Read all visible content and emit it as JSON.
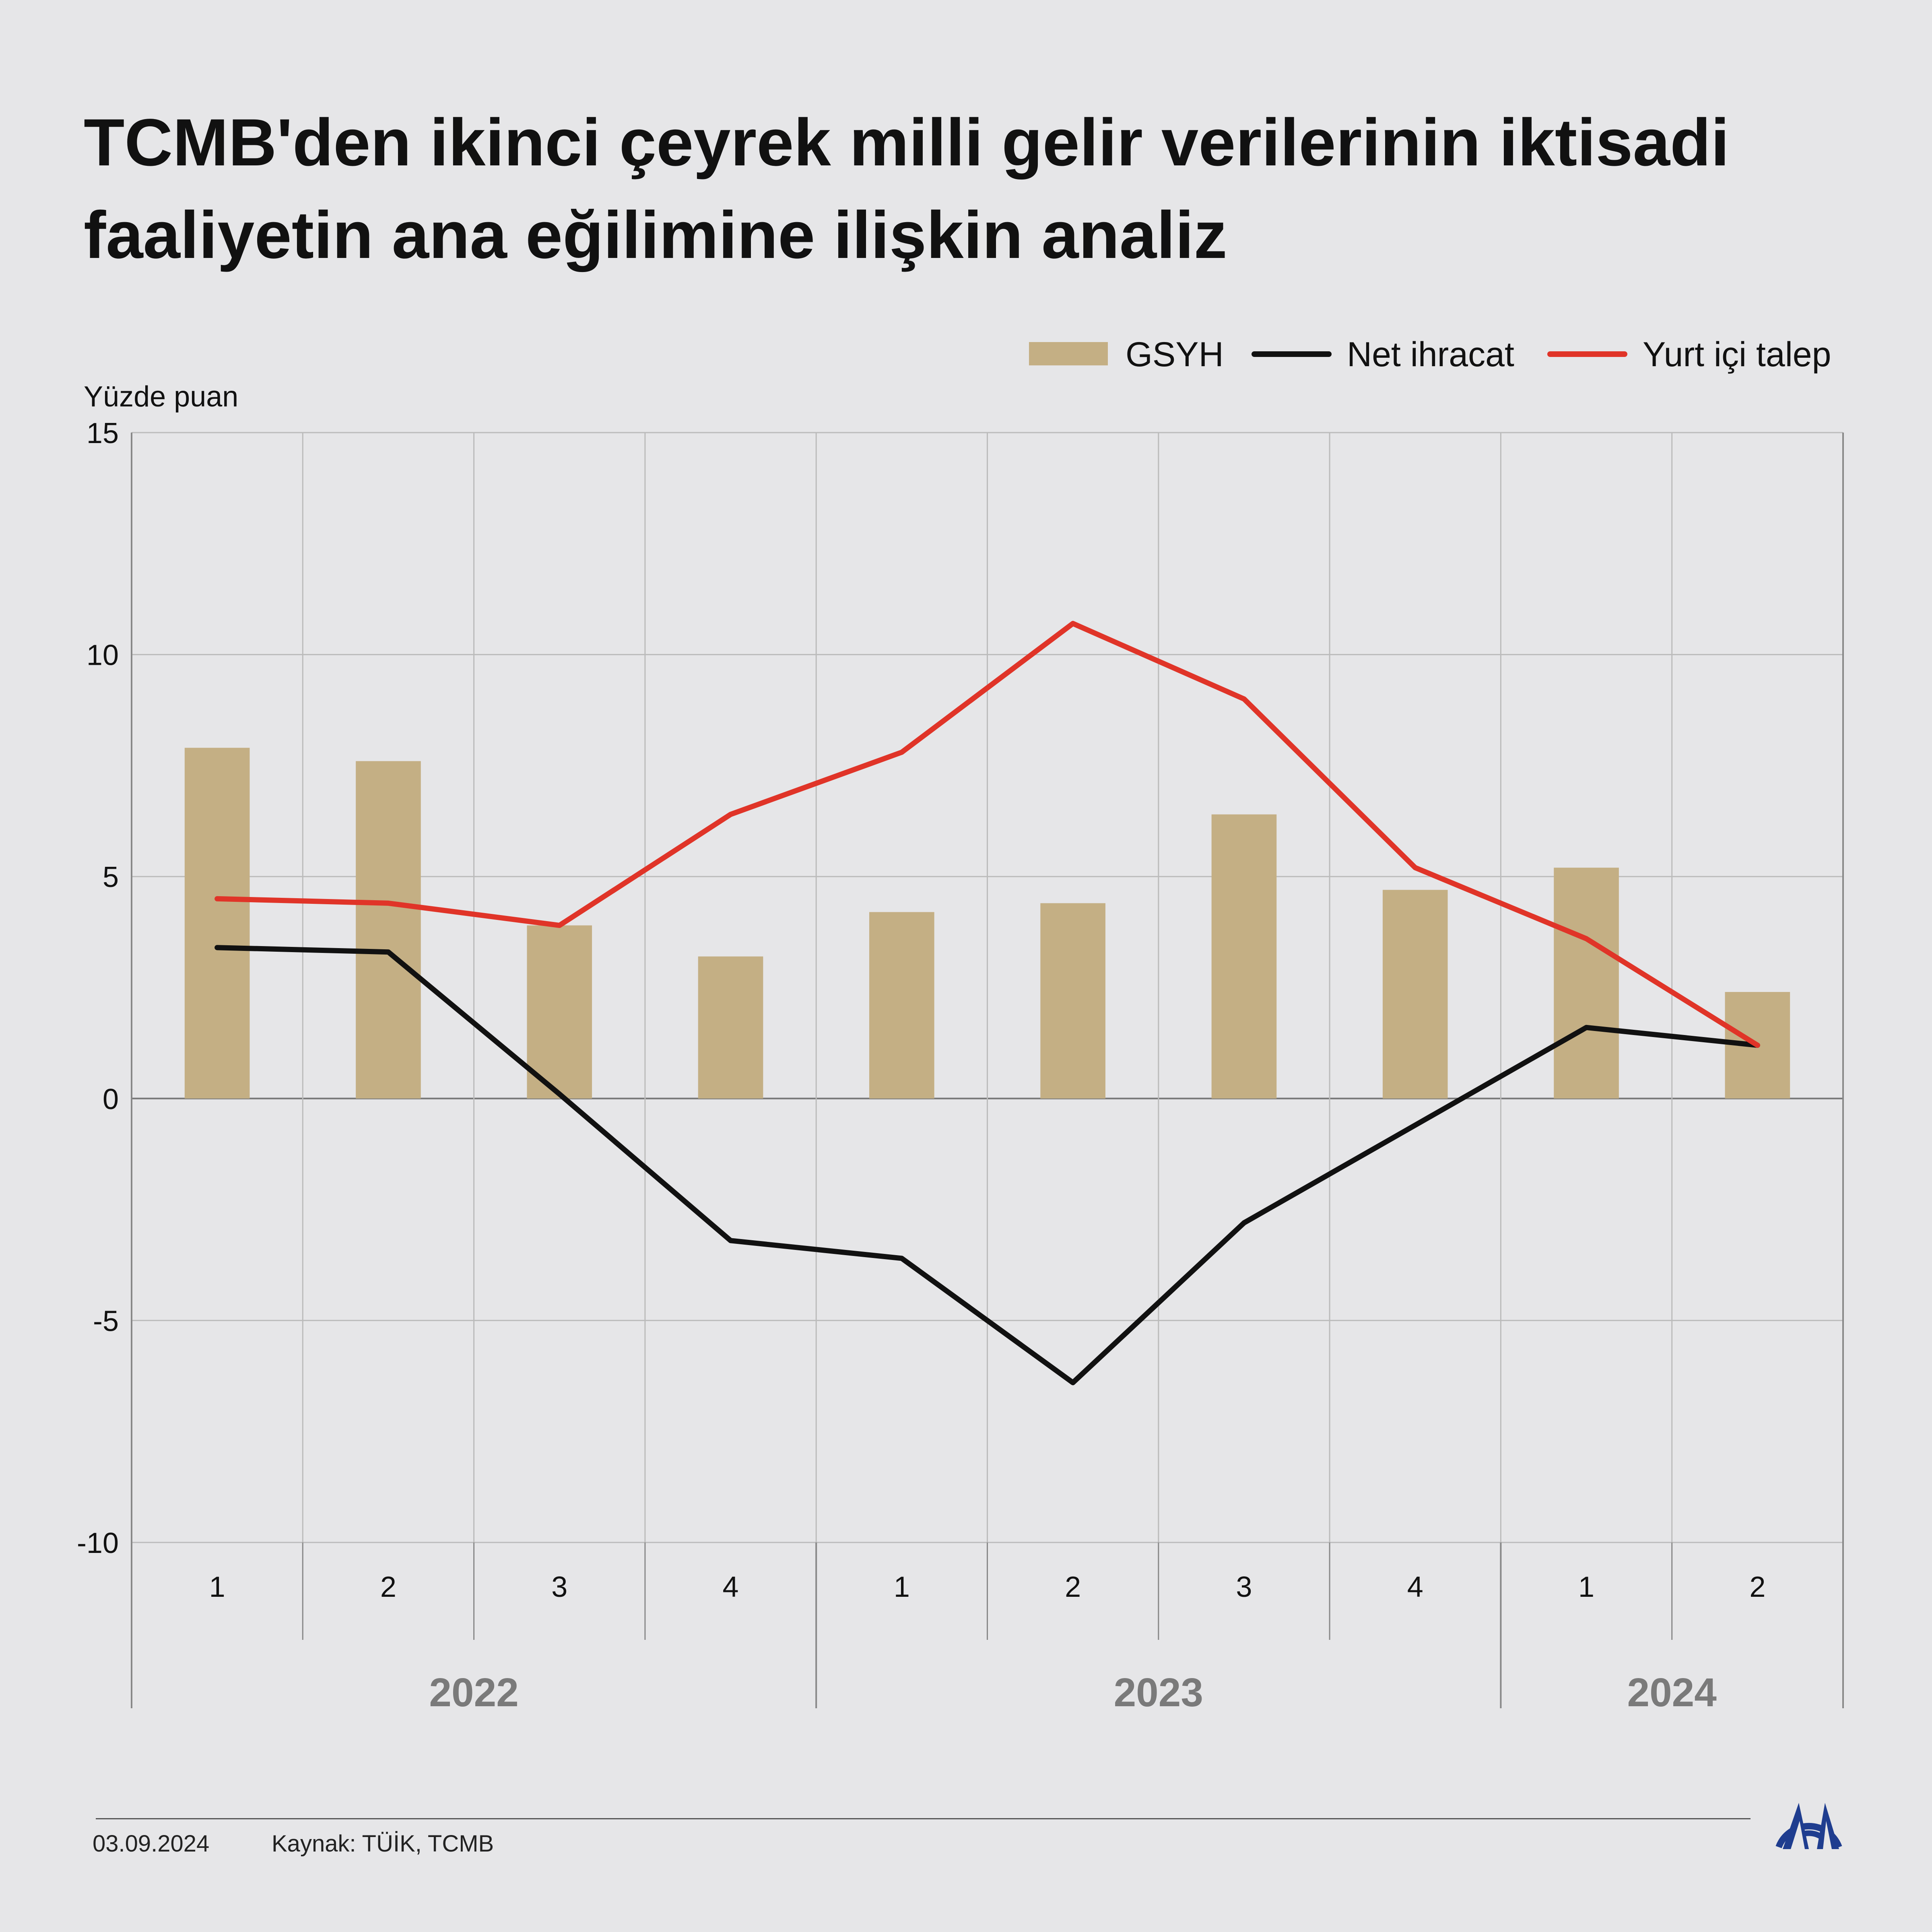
{
  "title": {
    "line1": "TCMB'den ikinci çeyrek milli gelir verilerinin iktisadi",
    "line2": "faaliyetin ana eğilimine ilişkin analiz"
  },
  "chart_data": {
    "type": "bar",
    "ylabel": "Yüzde puan",
    "ylim": [
      -10,
      15
    ],
    "yticks": [
      15,
      10,
      5,
      0,
      -5,
      -10
    ],
    "ytick_labels": [
      "15",
      "10",
      "5",
      "0",
      "-5",
      "-10"
    ],
    "categories": [
      "1",
      "2",
      "3",
      "4",
      "1",
      "2",
      "3",
      "4",
      "1",
      "2"
    ],
    "groups": [
      {
        "label": "2022",
        "count": 4
      },
      {
        "label": "2023",
        "count": 4
      },
      {
        "label": "2024",
        "count": 2
      }
    ],
    "grid": true,
    "legend_position": "top-right",
    "series": [
      {
        "name": "GSYH",
        "kind": "bar",
        "color": "#c4af84",
        "values": [
          7.9,
          7.6,
          3.9,
          3.2,
          4.2,
          4.4,
          6.4,
          4.7,
          5.2,
          2.4
        ]
      },
      {
        "name": "Net ihracat",
        "kind": "line",
        "color": "#111111",
        "values": [
          3.4,
          3.3,
          0.1,
          -3.2,
          -3.6,
          -6.4,
          -2.8,
          -0.6,
          1.6,
          1.2
        ]
      },
      {
        "name": "Yurt içi talep",
        "kind": "line",
        "color": "#e03428",
        "values": [
          4.5,
          4.4,
          3.9,
          6.4,
          7.8,
          10.7,
          9.0,
          5.2,
          3.6,
          1.2
        ]
      }
    ]
  },
  "footer": {
    "date": "03.09.2024",
    "source": "Kaynak: TÜİK, TCMB"
  },
  "logo": {
    "icon": "aa-logo-icon",
    "color": "#1f3d8f"
  }
}
